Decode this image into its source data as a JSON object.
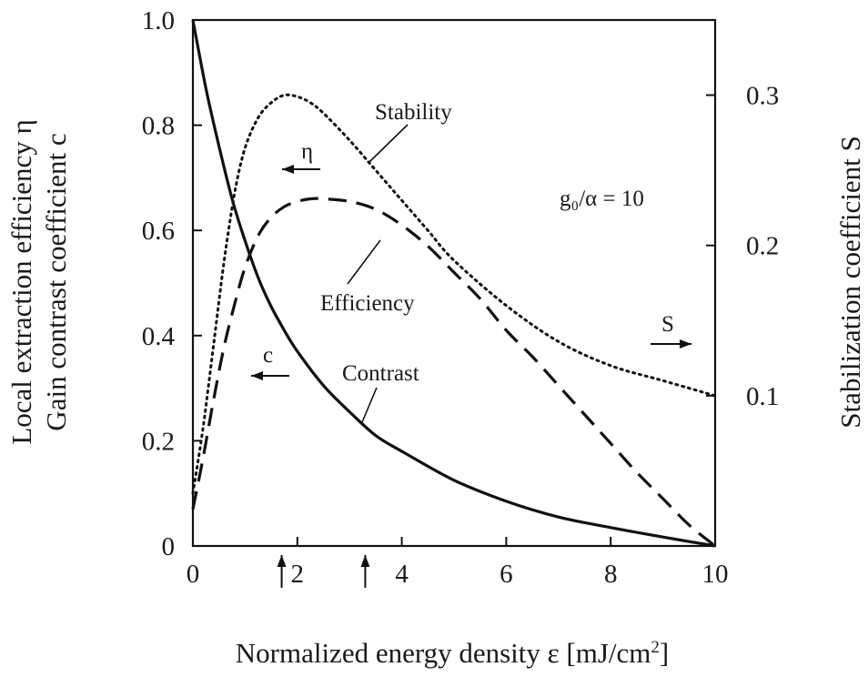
{
  "chart_data": {
    "type": "line",
    "title": "",
    "xlabel": "Normalized energy density ε [mJ/cm²]",
    "xlabel_main": "Normalized energy density ε [mJ/cm",
    "xlabel_sup": "2",
    "xlabel_end": "]",
    "ylabel_left_line1": "Local extraction efficiency η",
    "ylabel_left_line2": "Gain contrast coefficient c",
    "ylabel_right": "Stabilization coefficient S",
    "xlim": [
      0,
      10
    ],
    "ylim_left": [
      0,
      1.0
    ],
    "ylim_right": [
      0,
      0.35
    ],
    "x_ticks": [
      0,
      2,
      4,
      6,
      8,
      10
    ],
    "x_tick_labels": [
      "0",
      "2",
      "4",
      "6",
      "8",
      "10"
    ],
    "y_left_ticks": [
      0,
      0.2,
      0.4,
      0.6,
      0.8,
      1.0
    ],
    "y_left_tick_labels": [
      "0",
      "0.2",
      "0.4",
      "0.6",
      "0.8",
      "1.0"
    ],
    "y_right_ticks": [
      0.1,
      0.2,
      0.3
    ],
    "y_right_tick_labels": [
      "0.1",
      "0.2",
      "0.3"
    ],
    "x_markers": [
      1.7,
      3.3
    ],
    "parameter_text": "g₀/α = 10",
    "series": [
      {
        "name": "Contrast",
        "axis": "left",
        "style": "solid",
        "symbol": "c",
        "x": [
          0,
          0.25,
          0.5,
          0.75,
          1,
          1.25,
          1.5,
          1.75,
          2,
          2.5,
          3,
          3.5,
          4,
          5,
          6,
          7,
          8,
          9,
          10
        ],
        "y": [
          1.0,
          0.87,
          0.76,
          0.66,
          0.58,
          0.51,
          0.455,
          0.41,
          0.37,
          0.305,
          0.255,
          0.21,
          0.18,
          0.125,
          0.085,
          0.055,
          0.035,
          0.017,
          0.0
        ]
      },
      {
        "name": "Efficiency",
        "axis": "left",
        "style": "dashed",
        "symbol": "η",
        "x": [
          0,
          0.2,
          0.4,
          0.6,
          0.8,
          1,
          1.25,
          1.5,
          1.75,
          2,
          2.25,
          2.5,
          3,
          3.5,
          4,
          4.5,
          5,
          5.5,
          6,
          6.5,
          7,
          7.5,
          8,
          8.5,
          9,
          9.5,
          10
        ],
        "y": [
          0.07,
          0.17,
          0.28,
          0.38,
          0.46,
          0.53,
          0.59,
          0.625,
          0.645,
          0.655,
          0.66,
          0.66,
          0.655,
          0.64,
          0.61,
          0.57,
          0.52,
          0.47,
          0.41,
          0.36,
          0.305,
          0.25,
          0.195,
          0.14,
          0.09,
          0.04,
          0.0
        ]
      },
      {
        "name": "Stability",
        "axis": "right",
        "style": "dotted",
        "symbol": "S",
        "x": [
          0,
          0.2,
          0.4,
          0.6,
          0.8,
          1,
          1.25,
          1.5,
          1.75,
          2,
          2.25,
          2.5,
          3,
          3.5,
          4,
          4.5,
          5,
          6,
          7,
          8,
          9,
          10
        ],
        "y": [
          0.035,
          0.08,
          0.135,
          0.19,
          0.235,
          0.265,
          0.285,
          0.295,
          0.3,
          0.299,
          0.295,
          0.288,
          0.27,
          0.25,
          0.23,
          0.21,
          0.19,
          0.16,
          0.136,
          0.12,
          0.11,
          0.1
        ]
      }
    ]
  }
}
